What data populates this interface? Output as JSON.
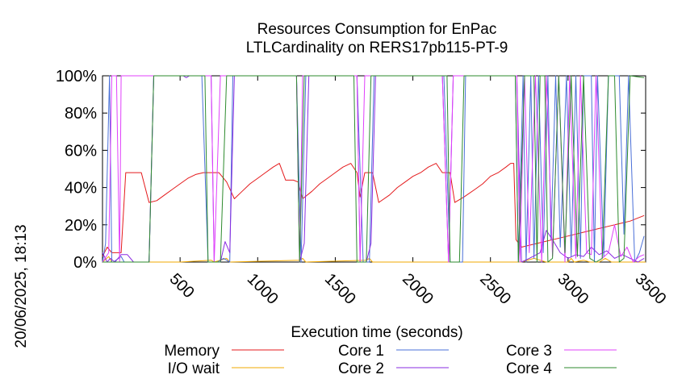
{
  "chart_data": {
    "type": "line",
    "title": "Resources Consumption for EnPac",
    "subtitle": "LTLCardinality on RERS17pb115-PT-9",
    "xlabel": "Execution time (seconds)",
    "ylabel": "",
    "side_label": "20/06/2025, 18:13",
    "xlim": [
      0,
      3500
    ],
    "ylim": [
      0,
      100
    ],
    "x_ticks": [
      500,
      1000,
      1500,
      2000,
      2500,
      3000,
      3500
    ],
    "x_tick_labels": [
      "500",
      "1000",
      "1500",
      "2000",
      "2500",
      "3000",
      "3500"
    ],
    "y_ticks": [
      0,
      20,
      40,
      60,
      80,
      100
    ],
    "y_tick_labels": [
      "0%",
      "20%",
      "40%",
      "60%",
      "80%",
      "100%"
    ],
    "grid": false,
    "legend_position": "bottom",
    "series": [
      {
        "name": "Memory",
        "color": "#e41a1c",
        "points": [
          [
            0,
            3
          ],
          [
            30,
            8
          ],
          [
            60,
            5
          ],
          [
            120,
            5
          ],
          [
            150,
            48
          ],
          [
            200,
            48
          ],
          [
            250,
            48
          ],
          [
            300,
            32
          ],
          [
            350,
            33
          ],
          [
            400,
            36
          ],
          [
            450,
            39
          ],
          [
            500,
            42
          ],
          [
            550,
            45
          ],
          [
            600,
            47
          ],
          [
            650,
            48
          ],
          [
            700,
            48
          ],
          [
            750,
            48
          ],
          [
            800,
            43
          ],
          [
            850,
            34
          ],
          [
            900,
            38
          ],
          [
            950,
            42
          ],
          [
            1000,
            45
          ],
          [
            1050,
            48
          ],
          [
            1100,
            51
          ],
          [
            1140,
            53
          ],
          [
            1180,
            44
          ],
          [
            1230,
            44
          ],
          [
            1260,
            43
          ],
          [
            1290,
            34
          ],
          [
            1350,
            38
          ],
          [
            1400,
            42
          ],
          [
            1450,
            45
          ],
          [
            1500,
            48
          ],
          [
            1550,
            51
          ],
          [
            1600,
            53
          ],
          [
            1640,
            48
          ],
          [
            1660,
            35
          ],
          [
            1690,
            48
          ],
          [
            1740,
            48
          ],
          [
            1780,
            32
          ],
          [
            1850,
            36
          ],
          [
            1900,
            40
          ],
          [
            1950,
            43
          ],
          [
            2000,
            46
          ],
          [
            2050,
            48
          ],
          [
            2100,
            51
          ],
          [
            2150,
            53
          ],
          [
            2190,
            48
          ],
          [
            2240,
            48
          ],
          [
            2270,
            32
          ],
          [
            2330,
            35
          ],
          [
            2400,
            39
          ],
          [
            2450,
            42
          ],
          [
            2500,
            46
          ],
          [
            2550,
            48
          ],
          [
            2600,
            51
          ],
          [
            2630,
            53
          ],
          [
            2650,
            53
          ],
          [
            2665,
            12
          ],
          [
            2700,
            8
          ],
          [
            2800,
            10
          ],
          [
            2900,
            12
          ],
          [
            3000,
            14
          ],
          [
            3100,
            16
          ],
          [
            3200,
            18
          ],
          [
            3300,
            20
          ],
          [
            3400,
            22
          ],
          [
            3490,
            25
          ]
        ]
      },
      {
        "name": "I/O wait",
        "color": "#f2a900",
        "points": [
          [
            0,
            0
          ],
          [
            40,
            3
          ],
          [
            60,
            0
          ],
          [
            500,
            0
          ],
          [
            700,
            1
          ],
          [
            720,
            0
          ],
          [
            800,
            2
          ],
          [
            820,
            0
          ],
          [
            1270,
            1
          ],
          [
            1290,
            2
          ],
          [
            1310,
            0
          ],
          [
            1700,
            1
          ],
          [
            1720,
            2
          ],
          [
            1740,
            0
          ],
          [
            2700,
            0
          ],
          [
            2780,
            2
          ],
          [
            2820,
            1
          ],
          [
            2860,
            0
          ],
          [
            3000,
            0
          ],
          [
            3020,
            2
          ],
          [
            3040,
            0
          ],
          [
            3100,
            1
          ],
          [
            3140,
            0
          ],
          [
            3200,
            0
          ],
          [
            3240,
            2
          ],
          [
            3280,
            0
          ],
          [
            3500,
            0
          ]
        ]
      },
      {
        "name": "Core 1",
        "color": "#4a6fd8",
        "points": [
          [
            0,
            0
          ],
          [
            20,
            10
          ],
          [
            45,
            100
          ],
          [
            60,
            0
          ],
          [
            70,
            0
          ],
          [
            120,
            3
          ],
          [
            140,
            0
          ],
          [
            300,
            0
          ],
          [
            330,
            100
          ],
          [
            640,
            100
          ],
          [
            680,
            0
          ],
          [
            740,
            0
          ],
          [
            780,
            2
          ],
          [
            820,
            0
          ],
          [
            840,
            100
          ],
          [
            1100,
            100
          ],
          [
            1250,
            100
          ],
          [
            1280,
            0
          ],
          [
            1310,
            100
          ],
          [
            1640,
            100
          ],
          [
            1680,
            0
          ],
          [
            1720,
            0
          ],
          [
            1750,
            100
          ],
          [
            2150,
            100
          ],
          [
            2200,
            100
          ],
          [
            2240,
            0
          ],
          [
            2320,
            0
          ],
          [
            2340,
            100
          ],
          [
            2660,
            100
          ],
          [
            2680,
            0
          ],
          [
            2710,
            100
          ],
          [
            2730,
            0
          ],
          [
            2760,
            100
          ],
          [
            2780,
            2
          ],
          [
            2810,
            100
          ],
          [
            2840,
            5
          ],
          [
            2870,
            100
          ],
          [
            2890,
            12
          ],
          [
            2920,
            100
          ],
          [
            2950,
            8
          ],
          [
            2990,
            100
          ],
          [
            3020,
            3
          ],
          [
            3050,
            100
          ],
          [
            3080,
            2
          ],
          [
            3100,
            100
          ],
          [
            3150,
            100
          ],
          [
            3170,
            0
          ],
          [
            3190,
            100
          ],
          [
            3230,
            3
          ],
          [
            3260,
            100
          ],
          [
            3300,
            100
          ],
          [
            3330,
            100
          ],
          [
            3360,
            15
          ],
          [
            3390,
            100
          ],
          [
            3430,
            0
          ],
          [
            3460,
            5
          ],
          [
            3490,
            14
          ]
        ]
      },
      {
        "name": "Core 2",
        "color": "#8a2be2",
        "points": [
          [
            0,
            5
          ],
          [
            30,
            0
          ],
          [
            50,
            2
          ],
          [
            80,
            0
          ],
          [
            120,
            4
          ],
          [
            160,
            4
          ],
          [
            200,
            0
          ],
          [
            300,
            0
          ],
          [
            330,
            100
          ],
          [
            520,
            100
          ],
          [
            540,
            99
          ],
          [
            560,
            100
          ],
          [
            700,
            100
          ],
          [
            720,
            0
          ],
          [
            760,
            0
          ],
          [
            790,
            11
          ],
          [
            820,
            5
          ],
          [
            850,
            100
          ],
          [
            1150,
            100
          ],
          [
            1250,
            100
          ],
          [
            1270,
            0
          ],
          [
            1300,
            10
          ],
          [
            1330,
            100
          ],
          [
            1640,
            100
          ],
          [
            1660,
            0
          ],
          [
            1700,
            0
          ],
          [
            1730,
            10
          ],
          [
            1760,
            100
          ],
          [
            2160,
            100
          ],
          [
            2190,
            100
          ],
          [
            2230,
            0
          ],
          [
            2260,
            100
          ],
          [
            2670,
            100
          ],
          [
            2700,
            0
          ],
          [
            2750,
            2
          ],
          [
            2820,
            5
          ],
          [
            2860,
            17
          ],
          [
            2900,
            12
          ],
          [
            2950,
            5
          ],
          [
            3000,
            2
          ],
          [
            3050,
            4
          ],
          [
            3100,
            3
          ],
          [
            3150,
            8
          ],
          [
            3200,
            4
          ],
          [
            3250,
            6
          ],
          [
            3300,
            2
          ],
          [
            3350,
            4
          ],
          [
            3400,
            2
          ],
          [
            3450,
            0
          ],
          [
            3490,
            2
          ]
        ]
      },
      {
        "name": "Core 3",
        "color": "#e040fb",
        "points": [
          [
            0,
            0
          ],
          [
            40,
            5
          ],
          [
            60,
            100
          ],
          [
            90,
            100
          ],
          [
            110,
            0
          ],
          [
            120,
            100
          ],
          [
            330,
            100
          ],
          [
            700,
            100
          ],
          [
            720,
            0
          ],
          [
            760,
            100
          ],
          [
            1250,
            100
          ],
          [
            1270,
            0
          ],
          [
            1290,
            100
          ],
          [
            1640,
            100
          ],
          [
            1660,
            0
          ],
          [
            1690,
            100
          ],
          [
            2160,
            100
          ],
          [
            2190,
            100
          ],
          [
            2230,
            0
          ],
          [
            2260,
            100
          ],
          [
            2670,
            100
          ],
          [
            2690,
            0
          ],
          [
            2720,
            100
          ],
          [
            2750,
            5
          ],
          [
            2790,
            100
          ],
          [
            2830,
            0
          ],
          [
            2860,
            100
          ],
          [
            2900,
            3
          ],
          [
            2940,
            100
          ],
          [
            2980,
            0
          ],
          [
            3010,
            100
          ],
          [
            3050,
            2
          ],
          [
            3080,
            100
          ],
          [
            3120,
            5
          ],
          [
            3150,
            4
          ],
          [
            3180,
            100
          ],
          [
            3220,
            2
          ],
          [
            3260,
            5
          ],
          [
            3300,
            20
          ],
          [
            3340,
            3
          ],
          [
            3380,
            8
          ],
          [
            3420,
            0
          ],
          [
            3460,
            3
          ],
          [
            3490,
            4
          ]
        ]
      },
      {
        "name": "Core 4",
        "color": "#2e8b2e",
        "points": [
          [
            0,
            0
          ],
          [
            50,
            0
          ],
          [
            80,
            0
          ],
          [
            120,
            0
          ],
          [
            300,
            0
          ],
          [
            330,
            100
          ],
          [
            660,
            100
          ],
          [
            680,
            0
          ],
          [
            760,
            0
          ],
          [
            800,
            100
          ],
          [
            1250,
            100
          ],
          [
            1270,
            0
          ],
          [
            1300,
            100
          ],
          [
            1620,
            100
          ],
          [
            1640,
            0
          ],
          [
            1700,
            0
          ],
          [
            1730,
            100
          ],
          [
            2220,
            100
          ],
          [
            2240,
            0
          ],
          [
            2300,
            0
          ],
          [
            2330,
            100
          ],
          [
            2660,
            100
          ],
          [
            2680,
            0
          ],
          [
            2720,
            100
          ],
          [
            2780,
            100
          ],
          [
            2800,
            0
          ],
          [
            2820,
            100
          ],
          [
            2850,
            100
          ],
          [
            2870,
            0
          ],
          [
            2900,
            2
          ],
          [
            2940,
            100
          ],
          [
            2980,
            5
          ],
          [
            3020,
            100
          ],
          [
            3060,
            3
          ],
          [
            3100,
            100
          ],
          [
            3140,
            2
          ],
          [
            3180,
            0
          ],
          [
            3220,
            2
          ],
          [
            3260,
            100
          ],
          [
            3300,
            100
          ],
          [
            3330,
            0
          ],
          [
            3360,
            2
          ],
          [
            3400,
            100
          ],
          [
            3490,
            99
          ]
        ]
      }
    ]
  }
}
